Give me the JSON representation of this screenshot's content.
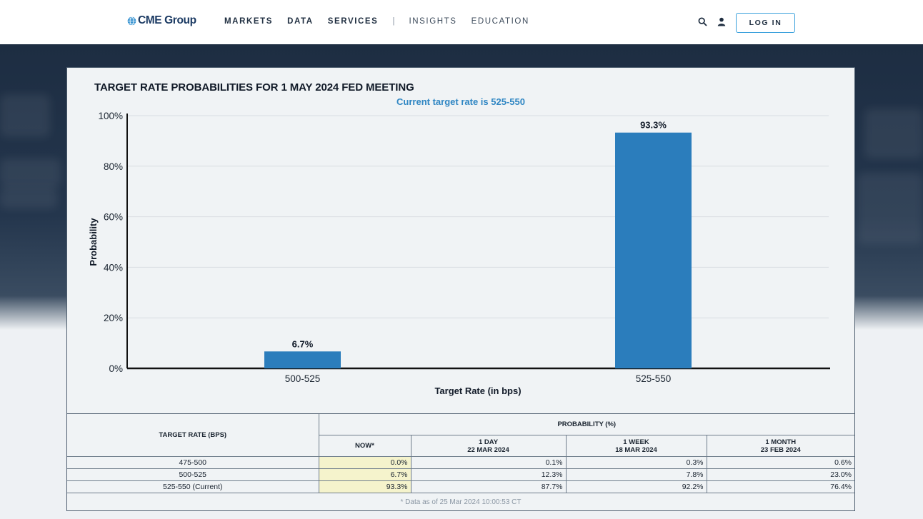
{
  "header": {
    "logo_text": "CME Group",
    "nav": [
      {
        "label": "MARKETS",
        "style": "strong"
      },
      {
        "label": "DATA",
        "style": "strong"
      },
      {
        "label": "SERVICES",
        "style": "strong"
      },
      {
        "label": "|",
        "style": "sep"
      },
      {
        "label": "INSIGHTS",
        "style": "light"
      },
      {
        "label": "EDUCATION",
        "style": "light"
      }
    ],
    "login_label": "LOG IN"
  },
  "colors": {
    "accent": "#2f86c3",
    "bar": "#2b7dbc",
    "highlight": "#f5f3cc"
  },
  "chart_data": {
    "type": "bar",
    "title": "TARGET RATE PROBABILITIES FOR 1 MAY 2024 FED MEETING",
    "subtitle": "Current target rate is 525-550",
    "xlabel": "Target Rate (in bps)",
    "ylabel": "Probability",
    "categories": [
      "500-525",
      "525-550"
    ],
    "values": [
      6.7,
      93.3
    ],
    "value_labels": [
      "6.7%",
      "93.3%"
    ],
    "ylim": [
      0,
      100
    ],
    "yticks": [
      0,
      20,
      40,
      60,
      80,
      100
    ],
    "ytick_labels": [
      "0%",
      "20%",
      "40%",
      "60%",
      "80%",
      "100%"
    ],
    "grid": true
  },
  "table": {
    "col_header": "TARGET RATE (BPS)",
    "group_header": "PROBABILITY (%)",
    "sub_headers": [
      {
        "line1": "NOW*",
        "line2": ""
      },
      {
        "line1": "1 DAY",
        "line2": "22 MAR 2024"
      },
      {
        "line1": "1 WEEK",
        "line2": "18 MAR 2024"
      },
      {
        "line1": "1 MONTH",
        "line2": "23 FEB 2024"
      }
    ],
    "rows": [
      {
        "rate": "475-500",
        "values": [
          "0.0%",
          "0.1%",
          "0.3%",
          "0.6%"
        ]
      },
      {
        "rate": "500-525",
        "values": [
          "6.7%",
          "12.3%",
          "7.8%",
          "23.0%"
        ]
      },
      {
        "rate": "525-550 (Current)",
        "values": [
          "93.3%",
          "87.7%",
          "92.2%",
          "76.4%"
        ]
      }
    ],
    "footnote": "* Data as of 25 Mar 2024 10:00:53 CT"
  }
}
